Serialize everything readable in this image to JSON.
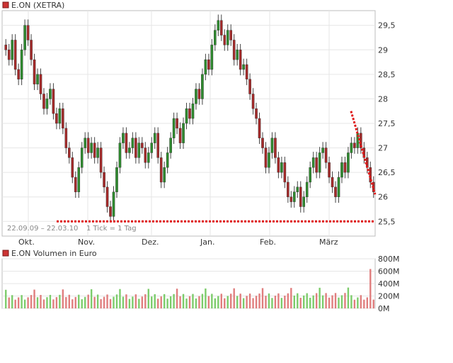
{
  "chart_data": [
    {
      "type": "candlestick",
      "legend": "E.ON (XETRA)",
      "date_range": "22.09.09 – 22.03.10",
      "interval": "1 Tick = 1 Tag",
      "x_tick_labels": [
        "Okt.",
        "Nov.",
        "Dez.",
        "Jan.",
        "Feb.",
        "März"
      ],
      "y_tick_labels": [
        "29,5",
        "29",
        "28,5",
        "28",
        "27,5",
        "27",
        "26,5",
        "26",
        "25,5"
      ],
      "ylim": [
        25.2,
        29.8
      ],
      "up_color": "#2e8b2e",
      "down_color": "#a52a2a",
      "annotations": [
        {
          "kind": "support-line",
          "y": 25.5,
          "color": "#e01a1a"
        },
        {
          "kind": "trend-line",
          "from": [
            0.935,
            27.75
          ],
          "to": [
            1.0,
            26.05
          ],
          "color": "#e01a1a"
        }
      ],
      "close_series": [
        29.0,
        28.8,
        29.2,
        28.6,
        28.4,
        29.0,
        29.5,
        29.2,
        28.8,
        28.3,
        28.5,
        28.1,
        27.8,
        28.0,
        28.2,
        27.7,
        27.5,
        27.8,
        27.4,
        27.0,
        26.8,
        26.4,
        26.1,
        26.6,
        27.0,
        27.2,
        26.9,
        27.1,
        26.8,
        27.0,
        26.5,
        26.2,
        25.8,
        25.6,
        26.1,
        26.6,
        27.1,
        27.3,
        26.9,
        27.0,
        27.2,
        26.8,
        27.1,
        27.0,
        26.7,
        26.9,
        27.1,
        27.3,
        26.8,
        26.3,
        26.6,
        26.9,
        27.2,
        27.6,
        27.4,
        27.1,
        27.5,
        27.8,
        27.6,
        27.9,
        28.2,
        28.0,
        28.5,
        28.8,
        28.6,
        29.1,
        29.4,
        29.6,
        29.3,
        29.1,
        29.4,
        29.2,
        28.8,
        29.0,
        28.6,
        28.7,
        28.4,
        28.1,
        27.8,
        27.6,
        27.2,
        27.0,
        26.6,
        26.9,
        27.2,
        26.8,
        26.5,
        26.7,
        26.3,
        26.0,
        25.9,
        26.1,
        26.2,
        25.8,
        26.0,
        26.3,
        26.6,
        26.8,
        26.5,
        26.9,
        27.0,
        26.7,
        26.4,
        26.2,
        26.0,
        26.4,
        26.7,
        26.5,
        26.9,
        27.1,
        27.0,
        27.3,
        27.0,
        26.8,
        26.6,
        26.3,
        26.1
      ],
      "volume": {
        "legend": "E.ON Volumen in Euro",
        "y_tick_labels": [
          "800M",
          "600M",
          "400M",
          "200M",
          "0M"
        ],
        "ylim": [
          0,
          800
        ]
      }
    }
  ]
}
